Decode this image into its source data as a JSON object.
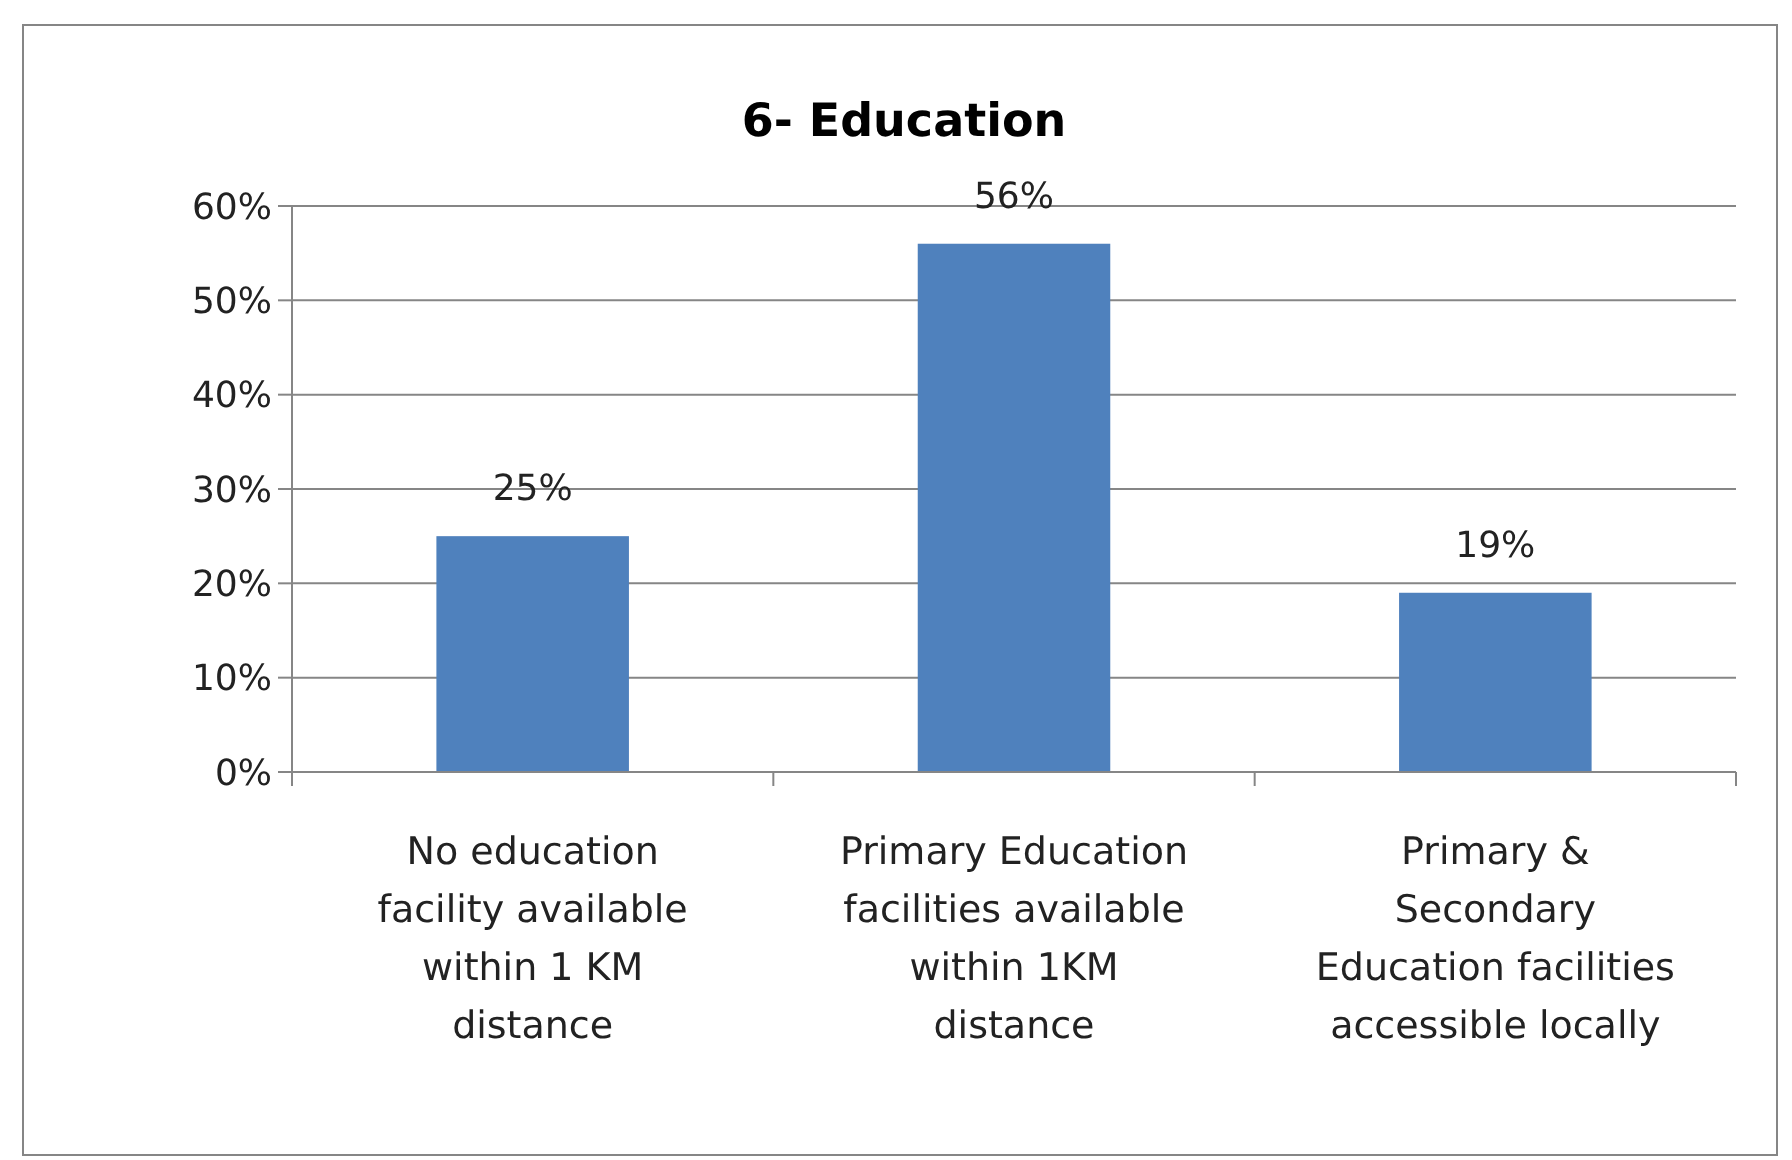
{
  "chart_data": {
    "type": "bar",
    "title": "6- Education",
    "categories": [
      "No education facility available within 1 KM distance",
      "Primary Education facilities available within 1KM distance",
      "Primary & Secondary Education facilities accessible locally"
    ],
    "values": [
      25,
      56,
      19
    ],
    "value_labels": [
      "25%",
      "56%",
      "19%"
    ],
    "color": "#4f81bd",
    "ylim": [
      0,
      60
    ],
    "yticks": [
      {
        "value": 0,
        "label": "0%"
      },
      {
        "value": 10,
        "label": "10%"
      },
      {
        "value": 20,
        "label": "20%"
      },
      {
        "value": 30,
        "label": "30%"
      },
      {
        "value": 40,
        "label": "40%"
      },
      {
        "value": 50,
        "label": "50%"
      },
      {
        "value": 60,
        "label": "60%"
      }
    ],
    "grid": "y"
  }
}
